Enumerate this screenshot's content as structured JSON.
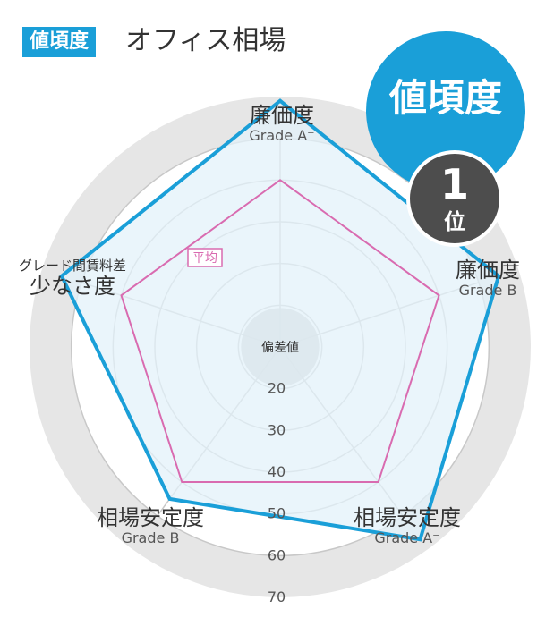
{
  "header": {
    "badge": "値頃度",
    "title": "オフィス相場"
  },
  "rank": {
    "category": "値頃度",
    "number": "1",
    "unit": "位"
  },
  "chart_data": {
    "type": "radar",
    "axes": [
      {
        "name": "廉価度",
        "grade": "Grade A⁻"
      },
      {
        "name": "廉価度",
        "grade": "Grade B"
      },
      {
        "name": "相場安定度",
        "grade": "Grade A⁻"
      },
      {
        "name": "相場安定度",
        "grade": "Grade B"
      },
      {
        "name": "少なさ度",
        "sub": "グレード間賃料差"
      }
    ],
    "scale_label": "偏差値",
    "scale_ticks": [
      20,
      30,
      40,
      50,
      60,
      70
    ],
    "range": [
      10,
      70
    ],
    "series": [
      {
        "name": "",
        "values": [
          69,
          65,
          67,
          55,
          65
        ],
        "color": "#1a9fd8",
        "fill": "#e3f1fa"
      },
      {
        "name": "平均",
        "values": [
          50,
          50,
          50,
          50,
          50
        ],
        "color": "#d96bb0"
      }
    ]
  }
}
